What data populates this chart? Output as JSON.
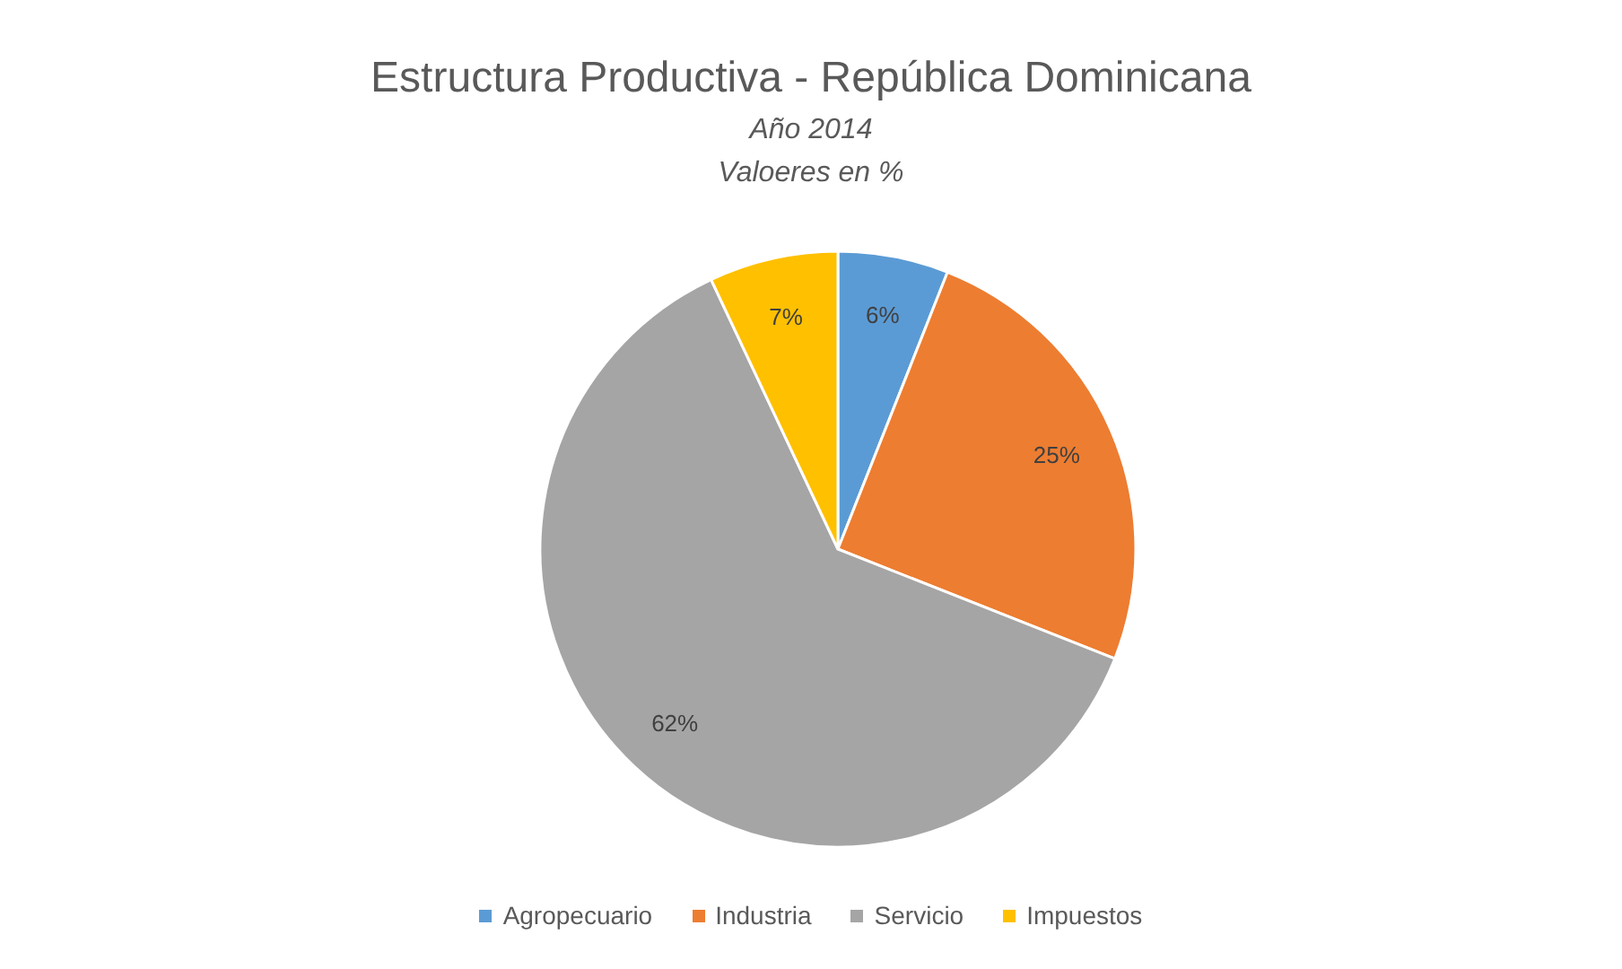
{
  "chart_data": {
    "type": "pie",
    "title": "Estructura Productiva - República Dominicana",
    "subtitle": "Año 2014",
    "annotations": [
      "Valoeres en %"
    ],
    "categories": [
      "Agropecuario",
      "Industria",
      "Servicio",
      "Impuestos"
    ],
    "values": [
      6,
      25,
      62,
      7
    ],
    "colors": [
      "#5b9bd5",
      "#ed7d31",
      "#a5a5a5",
      "#ffc000"
    ],
    "value_labels": [
      "6%",
      "25%",
      "62%",
      "7%"
    ],
    "legend": "bottom"
  }
}
